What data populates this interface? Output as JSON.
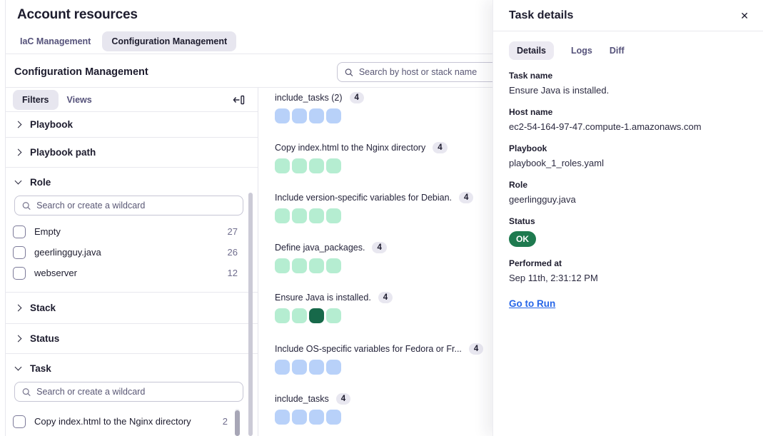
{
  "colors": {
    "blue": "#b8d1f9",
    "green": "#b5edd1",
    "selected": "#17694a",
    "status_ok": "#1e7a4f",
    "link": "#2666e8",
    "active_pill": "#e7e6ef"
  },
  "icons": {
    "search": "magnifier",
    "chevron_right": "chevron-right",
    "chevron_down": "chevron-down",
    "collapse_sidebar": "arrow-left-to-bar",
    "close": "✕",
    "checkbox": "unchecked-checkbox"
  },
  "page": {
    "title": "Account resources",
    "tabs": [
      {
        "label": "IaC Management",
        "active": false
      },
      {
        "label": "Configuration Management",
        "active": true
      }
    ],
    "section_title": "Configuration Management",
    "search_placeholder": "Search by host or stack name"
  },
  "sidebar": {
    "tabs": [
      {
        "label": "Filters",
        "active": true
      },
      {
        "label": "Views",
        "active": false
      }
    ],
    "filter_search_placeholder": "Search or create a wildcard",
    "sections": [
      {
        "label": "Playbook",
        "expanded": false
      },
      {
        "label": "Playbook path",
        "expanded": false
      },
      {
        "label": "Role",
        "expanded": true,
        "options": [
          {
            "label": "Empty",
            "count": "27",
            "checked": false
          },
          {
            "label": "geerlingguy.java",
            "count": "26",
            "checked": false
          },
          {
            "label": "webserver",
            "count": "12",
            "checked": false
          }
        ]
      },
      {
        "label": "Stack",
        "expanded": false
      },
      {
        "label": "Status",
        "expanded": false
      },
      {
        "label": "Task",
        "expanded": true,
        "options": [
          {
            "label": "Copy index.html to the Nginx directory",
            "count": "2",
            "checked": false
          }
        ]
      }
    ]
  },
  "groups": [
    {
      "label": "include_tasks (2)",
      "count": "4",
      "cells": [
        "blue",
        "blue",
        "blue",
        "blue"
      ]
    },
    {
      "label": "Copy index.html to the Nginx directory",
      "count": "4",
      "cells": [
        "green",
        "green",
        "green",
        "green"
      ]
    },
    {
      "label": "Include version-specific variables for Debian.",
      "count": "4",
      "cells": [
        "green",
        "green",
        "green",
        "green"
      ]
    },
    {
      "label": "Define java_packages.",
      "count": "4",
      "cells": [
        "green",
        "green",
        "green",
        "green"
      ]
    },
    {
      "label": "Ensure Java is installed.",
      "count": "4",
      "cells": [
        "green",
        "green",
        "selected",
        "green"
      ]
    },
    {
      "label": "Include OS-specific variables for Fedora or Fr...",
      "count": "4",
      "cells": [
        "blue",
        "blue",
        "blue",
        "blue"
      ]
    },
    {
      "label": "include_tasks",
      "count": "4",
      "cells": [
        "blue",
        "blue",
        "blue",
        "blue"
      ]
    }
  ],
  "panel": {
    "title": "Task details",
    "tabs": [
      {
        "label": "Details",
        "active": true
      },
      {
        "label": "Logs",
        "active": false
      },
      {
        "label": "Diff",
        "active": false
      }
    ],
    "fields": [
      {
        "label": "Task name",
        "value": "Ensure Java is installed."
      },
      {
        "label": "Host name",
        "value": "ec2-54-164-97-47.compute-1.amazonaws.com"
      },
      {
        "label": "Playbook",
        "value": "playbook_1_roles.yaml"
      },
      {
        "label": "Role",
        "value": "geerlingguy.java"
      }
    ],
    "status": {
      "label": "Status",
      "value": "OK"
    },
    "performed": {
      "label": "Performed at",
      "value": "Sep 11th, 2:31:12 PM"
    },
    "run_link": "Go to Run"
  }
}
